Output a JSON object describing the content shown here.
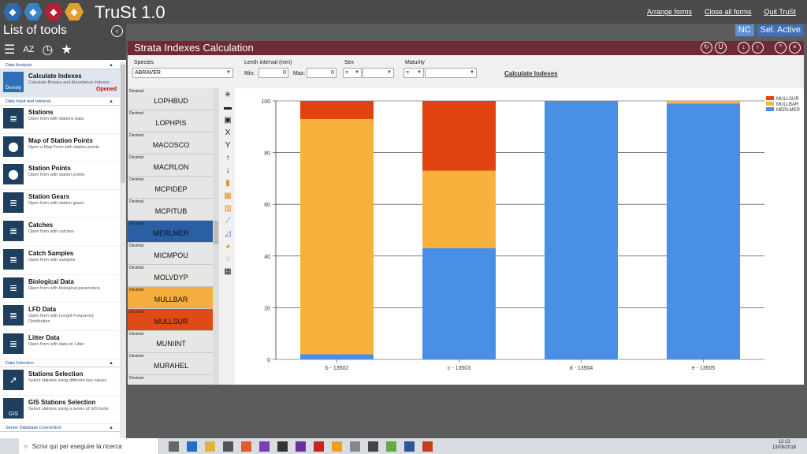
{
  "app": {
    "title": "TruSt 1.0",
    "top_links": [
      "Arrange forms",
      "Close all forms",
      "Quit TruSt"
    ],
    "badges": [
      {
        "label": "NC",
        "color": "#5b8fd6"
      },
      {
        "label": "Sel. Active",
        "color": "#3f6fb8"
      }
    ]
  },
  "sidebar": {
    "title": "List of tools",
    "sections": [
      {
        "header": "Data Analysis",
        "items": [
          {
            "title": "Calculate Indexes",
            "desc": "Calculate Bimass and Abundance Indexes",
            "status": "Opened",
            "icon_label": "Density"
          }
        ]
      },
      {
        "header": "Data Input and retrieval",
        "items": [
          {
            "title": "Stations",
            "desc": "Open form with stations data"
          },
          {
            "title": "Map of Station Points",
            "desc": "Open a Map Form with station points"
          },
          {
            "title": "Station Points",
            "desc": "Open form with station points"
          },
          {
            "title": "Station Gears",
            "desc": "Open form with station gears"
          },
          {
            "title": "Catches",
            "desc": "Open form with catches"
          },
          {
            "title": "Catch Samples",
            "desc": "Open form with samples"
          },
          {
            "title": "Biological Data",
            "desc": "Open form with biological parameters"
          },
          {
            "title": "LFD Data",
            "desc": "Open form with Lenght Frequency Distribution"
          },
          {
            "title": "Litter Data",
            "desc": "Open form with data on Litter"
          }
        ]
      },
      {
        "header": "Data Selection",
        "items": [
          {
            "title": "Stations Selection",
            "desc": "Select stations using different key values"
          },
          {
            "title": "GIS Stations Selection",
            "desc": "Select stations using a series of GIS tools",
            "icon_label": "GIS"
          }
        ]
      },
      {
        "header": "Server Database Connection",
        "items": []
      }
    ]
  },
  "window": {
    "title": "Strata Indexes Calculation",
    "filters": {
      "species_label": "Species",
      "species_value": "ABRAVER",
      "length_label": "Lenth interval (mm)",
      "min_label": "Min:",
      "min_value": "0",
      "max_label": "Max:",
      "max_value": "0",
      "sex_label": "Sex",
      "sex_op": "=",
      "maturity_label": "Maturity",
      "maturity_op": "=",
      "calc_link": "Calculate Indexes"
    },
    "species_list": [
      {
        "tag": "Decimal",
        "name": "LOPHBUD",
        "state": "normal"
      },
      {
        "tag": "Decimal",
        "name": "LOPHPIS",
        "state": "normal"
      },
      {
        "tag": "Decimal",
        "name": "MACOSCO",
        "state": "normal"
      },
      {
        "tag": "Decimal",
        "name": "MACRLON",
        "state": "normal"
      },
      {
        "tag": "Decimal",
        "name": "MCPIDEP",
        "state": "normal"
      },
      {
        "tag": "Decimal",
        "name": "MCPITUB",
        "state": "normal"
      },
      {
        "tag": "Decimal",
        "name": "MERLMER",
        "state": "blue"
      },
      {
        "tag": "Decimal",
        "name": "MICMPOU",
        "state": "normal"
      },
      {
        "tag": "Decimal",
        "name": "MOLVDYP",
        "state": "normal"
      },
      {
        "tag": "Decimal",
        "name": "MULLBAR",
        "state": "orange"
      },
      {
        "tag": "Decimal",
        "name": "MULLSUR",
        "state": "red"
      },
      {
        "tag": "Decimal",
        "name": "MUNIINT",
        "state": "normal"
      },
      {
        "tag": "Decimal",
        "name": "MURAHEL",
        "state": "normal"
      },
      {
        "tag": "Decimal",
        "name": "",
        "state": "normal"
      }
    ]
  },
  "chart_data": {
    "type": "bar",
    "stacked": true,
    "categories": [
      "b - 13502",
      "c - 13503",
      "d - 13504",
      "e - 13505"
    ],
    "series": [
      {
        "name": "MERLMER",
        "color": "#4a8fe6",
        "values": [
          2,
          43,
          100,
          99
        ]
      },
      {
        "name": "MULLBAR",
        "color": "#f8b13d",
        "values": [
          91,
          30,
          0,
          1
        ]
      },
      {
        "name": "MULLSUR",
        "color": "#e0430f",
        "values": [
          7,
          27,
          0,
          0
        ]
      }
    ],
    "legend_order": [
      "MULLSUR",
      "MULLBAR",
      "MERLMER"
    ],
    "legend_position": "top-right",
    "yticks": [
      "0",
      "20",
      "40",
      "60",
      "80",
      "100"
    ],
    "ylim": [
      0,
      100
    ],
    "grid": true
  },
  "taskbar": {
    "search_placeholder": "Scrivi qui per eseguire la ricerca",
    "time": "12:13",
    "date": "13/09/2018"
  }
}
